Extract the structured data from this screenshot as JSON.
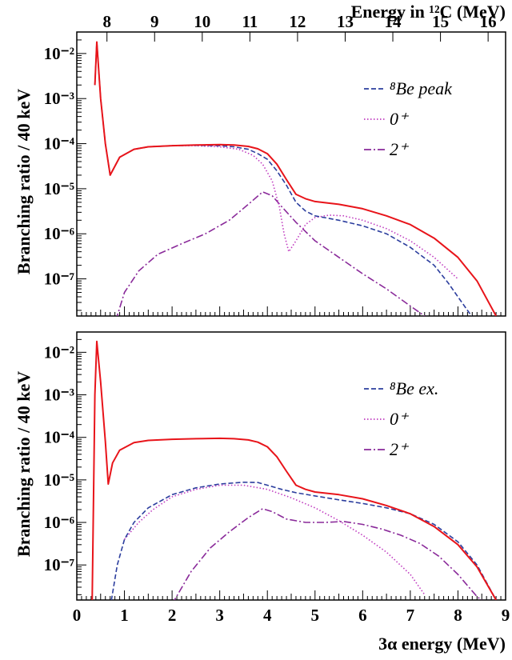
{
  "chart_data": [
    {
      "type": "line",
      "panel": "top",
      "top_axis_label": "Energy in ¹²C (MeV)",
      "top_axis_ticks": [
        "8",
        "9",
        "10",
        "11",
        "12",
        "13",
        "14",
        "15",
        "16"
      ],
      "ylabel": "Branching ratio / 40 keV",
      "yscale": "log",
      "ylim": [
        1.5e-08,
        0.03
      ],
      "xlim": [
        0,
        9
      ],
      "ytick_labels": [
        "10⁻²",
        "10⁻³",
        "10⁻⁴",
        "10⁻⁵",
        "10⁻⁶",
        "10⁻⁷"
      ],
      "legend": {
        "placement": "top-right",
        "entries": [
          "⁸Be peak",
          "0⁺",
          "2⁺"
        ]
      },
      "series": [
        {
          "name": "total",
          "color": "#e8141a",
          "style": "solid",
          "x": [
            0.38,
            0.42,
            0.5,
            0.6,
            0.7,
            0.9,
            1.2,
            1.5,
            2.0,
            2.5,
            3.0,
            3.3,
            3.6,
            3.8,
            4.0,
            4.2,
            4.4,
            4.6,
            4.8,
            5.0,
            5.5,
            6.0,
            6.5,
            7.0,
            7.5,
            8.0,
            8.4,
            8.8
          ],
          "y": [
            0.002,
            0.018,
            0.001,
            0.0001,
            2e-05,
            5e-05,
            7.5e-05,
            8.5e-05,
            9e-05,
            9.3e-05,
            9.5e-05,
            9.3e-05,
            8.7e-05,
            7.7e-05,
            6e-05,
            3.5e-05,
            1.6e-05,
            7.5e-06,
            6e-06,
            5.2e-06,
            4.5e-06,
            3.6e-06,
            2.5e-06,
            1.6e-06,
            8e-07,
            3e-07,
            9e-08,
            1.5e-08
          ]
        },
        {
          "name": "⁸Be peak",
          "color": "#2c3e9e",
          "style": "dashed",
          "x": [
            0.38,
            0.42,
            0.5,
            0.6,
            0.7,
            0.9,
            1.2,
            1.5,
            2.0,
            2.5,
            3.0,
            3.3,
            3.6,
            3.8,
            4.0,
            4.2,
            4.4,
            4.6,
            4.8,
            5.0,
            5.5,
            6.0,
            6.5,
            7.0,
            7.5,
            7.8,
            8.0,
            8.2,
            8.4
          ],
          "y": [
            0.002,
            0.018,
            0.001,
            0.0001,
            2e-05,
            5e-05,
            7.5e-05,
            8.5e-05,
            9e-05,
            9.2e-05,
            9e-05,
            8.5e-05,
            7.5e-05,
            6e-05,
            4.5e-05,
            2.5e-05,
            1.2e-05,
            5e-06,
            3.2e-06,
            2.5e-06,
            2e-06,
            1.5e-06,
            1e-06,
            5e-07,
            2e-07,
            8e-08,
            4e-08,
            2e-08,
            1e-08
          ]
        },
        {
          "name": "0⁺",
          "color": "#c03cc0",
          "style": "dotted",
          "x": [
            1.2,
            1.5,
            2.0,
            2.5,
            3.0,
            3.4,
            3.7,
            3.9,
            4.1,
            4.25,
            4.35,
            4.45,
            4.6,
            4.8,
            5.0,
            5.3,
            5.6,
            6.0,
            6.5,
            7.0,
            7.5,
            8.0
          ],
          "y": [
            7.5e-05,
            8.5e-05,
            9e-05,
            9e-05,
            8.5e-05,
            7.5e-05,
            5.5e-05,
            3.5e-05,
            1.5e-05,
            4e-06,
            1e-06,
            4e-07,
            7e-07,
            1.6e-06,
            2.3e-06,
            2.6e-06,
            2.5e-06,
            2e-06,
            1.3e-06,
            7e-07,
            3e-07,
            1e-07
          ]
        },
        {
          "name": "2⁺",
          "color": "#8a2a9a",
          "style": "dashdot",
          "x": [
            0.82,
            1.0,
            1.3,
            1.7,
            2.2,
            2.7,
            3.2,
            3.6,
            3.9,
            4.1,
            4.3,
            4.6,
            5.0,
            5.5,
            6.0,
            6.5,
            7.0,
            7.3
          ],
          "y": [
            1.2e-08,
            5e-08,
            1.5e-07,
            3.5e-07,
            6e-07,
            1e-06,
            2e-06,
            4.5e-06,
            8.5e-06,
            7e-06,
            4e-06,
            1.8e-06,
            7e-07,
            3e-07,
            1.3e-07,
            6e-08,
            2.5e-08,
            1.5e-08
          ]
        }
      ]
    },
    {
      "type": "line",
      "panel": "bottom",
      "xlabel": "3α energy (MeV)",
      "ylabel": "Branching ratio / 40 keV",
      "yscale": "log",
      "ylim": [
        1.5e-08,
        0.03
      ],
      "xlim": [
        0,
        9
      ],
      "xtick_labels": [
        "0",
        "1",
        "2",
        "3",
        "4",
        "5",
        "6",
        "7",
        "8",
        "9"
      ],
      "ytick_labels": [
        "10⁻²",
        "10⁻³",
        "10⁻⁴",
        "10⁻⁵",
        "10⁻⁶",
        "10⁻⁷"
      ],
      "legend": {
        "placement": "top-right",
        "entries": [
          "⁸Be ex.",
          "0⁺",
          "2⁺"
        ]
      },
      "series": [
        {
          "name": "total",
          "color": "#e8141a",
          "style": "solid",
          "x": [
            0.32,
            0.38,
            0.42,
            0.5,
            0.6,
            0.66,
            0.75,
            0.9,
            1.2,
            1.5,
            2.0,
            2.5,
            3.0,
            3.3,
            3.6,
            3.8,
            4.0,
            4.2,
            4.4,
            4.6,
            4.8,
            5.0,
            5.5,
            6.0,
            6.5,
            7.0,
            7.5,
            8.0,
            8.4,
            8.8
          ],
          "y": [
            1e-08,
            0.001,
            0.018,
            0.002,
            8e-05,
            8e-06,
            2.5e-05,
            5e-05,
            7.5e-05,
            8.5e-05,
            9e-05,
            9.3e-05,
            9.5e-05,
            9.3e-05,
            8.7e-05,
            7.7e-05,
            6e-05,
            3.5e-05,
            1.6e-05,
            7.5e-06,
            6e-06,
            5.2e-06,
            4.5e-06,
            3.6e-06,
            2.5e-06,
            1.6e-06,
            8e-07,
            3e-07,
            9e-08,
            1.5e-08
          ]
        },
        {
          "name": "⁸Be ex.",
          "color": "#2c3e9e",
          "style": "dashed",
          "x": [
            0.7,
            0.85,
            1.0,
            1.2,
            1.5,
            2.0,
            2.5,
            3.0,
            3.5,
            3.8,
            4.0,
            4.3,
            4.6,
            5.0,
            5.5,
            6.0,
            6.5,
            7.0,
            7.5,
            8.0,
            8.4,
            8.8
          ],
          "y": [
            1e-08,
            1e-07,
            4e-07,
            1e-06,
            2.2e-06,
            4.5e-06,
            6.5e-06,
            8e-06,
            8.8e-06,
            8.7e-06,
            7.5e-06,
            6e-06,
            5e-06,
            4.2e-06,
            3.4e-06,
            2.8e-06,
            2.2e-06,
            1.6e-06,
            9e-07,
            3.5e-07,
            1e-07,
            1.5e-08
          ]
        },
        {
          "name": "0⁺",
          "color": "#c03cc0",
          "style": "dotted",
          "x": [
            1.0,
            1.3,
            1.6,
            2.0,
            2.5,
            3.0,
            3.5,
            4.0,
            4.5,
            5.0,
            5.5,
            6.0,
            6.5,
            7.0,
            7.3
          ],
          "y": [
            4e-07,
            1e-06,
            2e-06,
            4e-06,
            6e-06,
            7.5e-06,
            7.5e-06,
            6e-06,
            3.8e-06,
            2.2e-06,
            1.1e-06,
            5e-07,
            2e-07,
            6e-08,
            2e-08
          ]
        },
        {
          "name": "2⁺",
          "color": "#8a2a9a",
          "style": "dashdot",
          "x": [
            2.0,
            2.4,
            2.8,
            3.2,
            3.6,
            3.9,
            4.1,
            4.4,
            4.8,
            5.2,
            5.6,
            6.0,
            6.4,
            6.8,
            7.2,
            7.6,
            8.0,
            8.4,
            8.7
          ],
          "y": [
            1.2e-08,
            7e-08,
            2.5e-07,
            6e-07,
            1.3e-06,
            2.1e-06,
            1.8e-06,
            1.2e-06,
            1e-06,
            1e-06,
            1.05e-06,
            9e-07,
            7e-07,
            5e-07,
            3.2e-07,
            1.6e-07,
            6e-08,
            1.8e-08,
            1e-08
          ]
        }
      ]
    }
  ]
}
